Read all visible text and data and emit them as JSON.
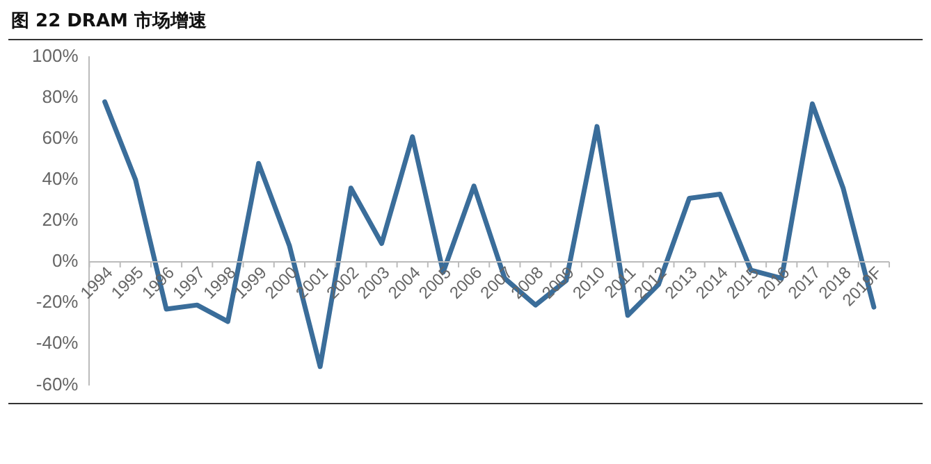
{
  "chart_data": {
    "type": "line",
    "title": "图 22 DRAM 市场增速",
    "categories": [
      "1994",
      "1995",
      "1996",
      "1997",
      "1998",
      "1999",
      "2000",
      "2001",
      "2002",
      "2003",
      "2004",
      "2005",
      "2006",
      "2007",
      "2008",
      "2009",
      "2010",
      "2011",
      "2012",
      "2013",
      "2014",
      "2015",
      "2016",
      "2017",
      "2018",
      "2019F"
    ],
    "series": [
      {
        "color": "#3a6d9a",
        "values": [
          78,
          40,
          -23,
          -21,
          -29,
          48,
          8,
          -51,
          36,
          9,
          61,
          -5,
          37,
          -8,
          -21,
          -9,
          66,
          -26,
          -11,
          31,
          33,
          -4,
          -8,
          77,
          36,
          -22
        ]
      }
    ],
    "ylim": [
      -60,
      100
    ],
    "yticks": [
      {
        "value": -60,
        "label": "-60%"
      },
      {
        "value": -40,
        "label": "-40%"
      },
      {
        "value": -20,
        "label": "-20%"
      },
      {
        "value": 0,
        "label": "0%"
      },
      {
        "value": 20,
        "label": "20%"
      },
      {
        "value": 40,
        "label": "40%"
      },
      {
        "value": 60,
        "label": "60%"
      },
      {
        "value": 80,
        "label": "80%"
      },
      {
        "value": 100,
        "label": "100%"
      }
    ],
    "grid": false,
    "legend": false,
    "marker": "none",
    "line_style": "solid"
  }
}
